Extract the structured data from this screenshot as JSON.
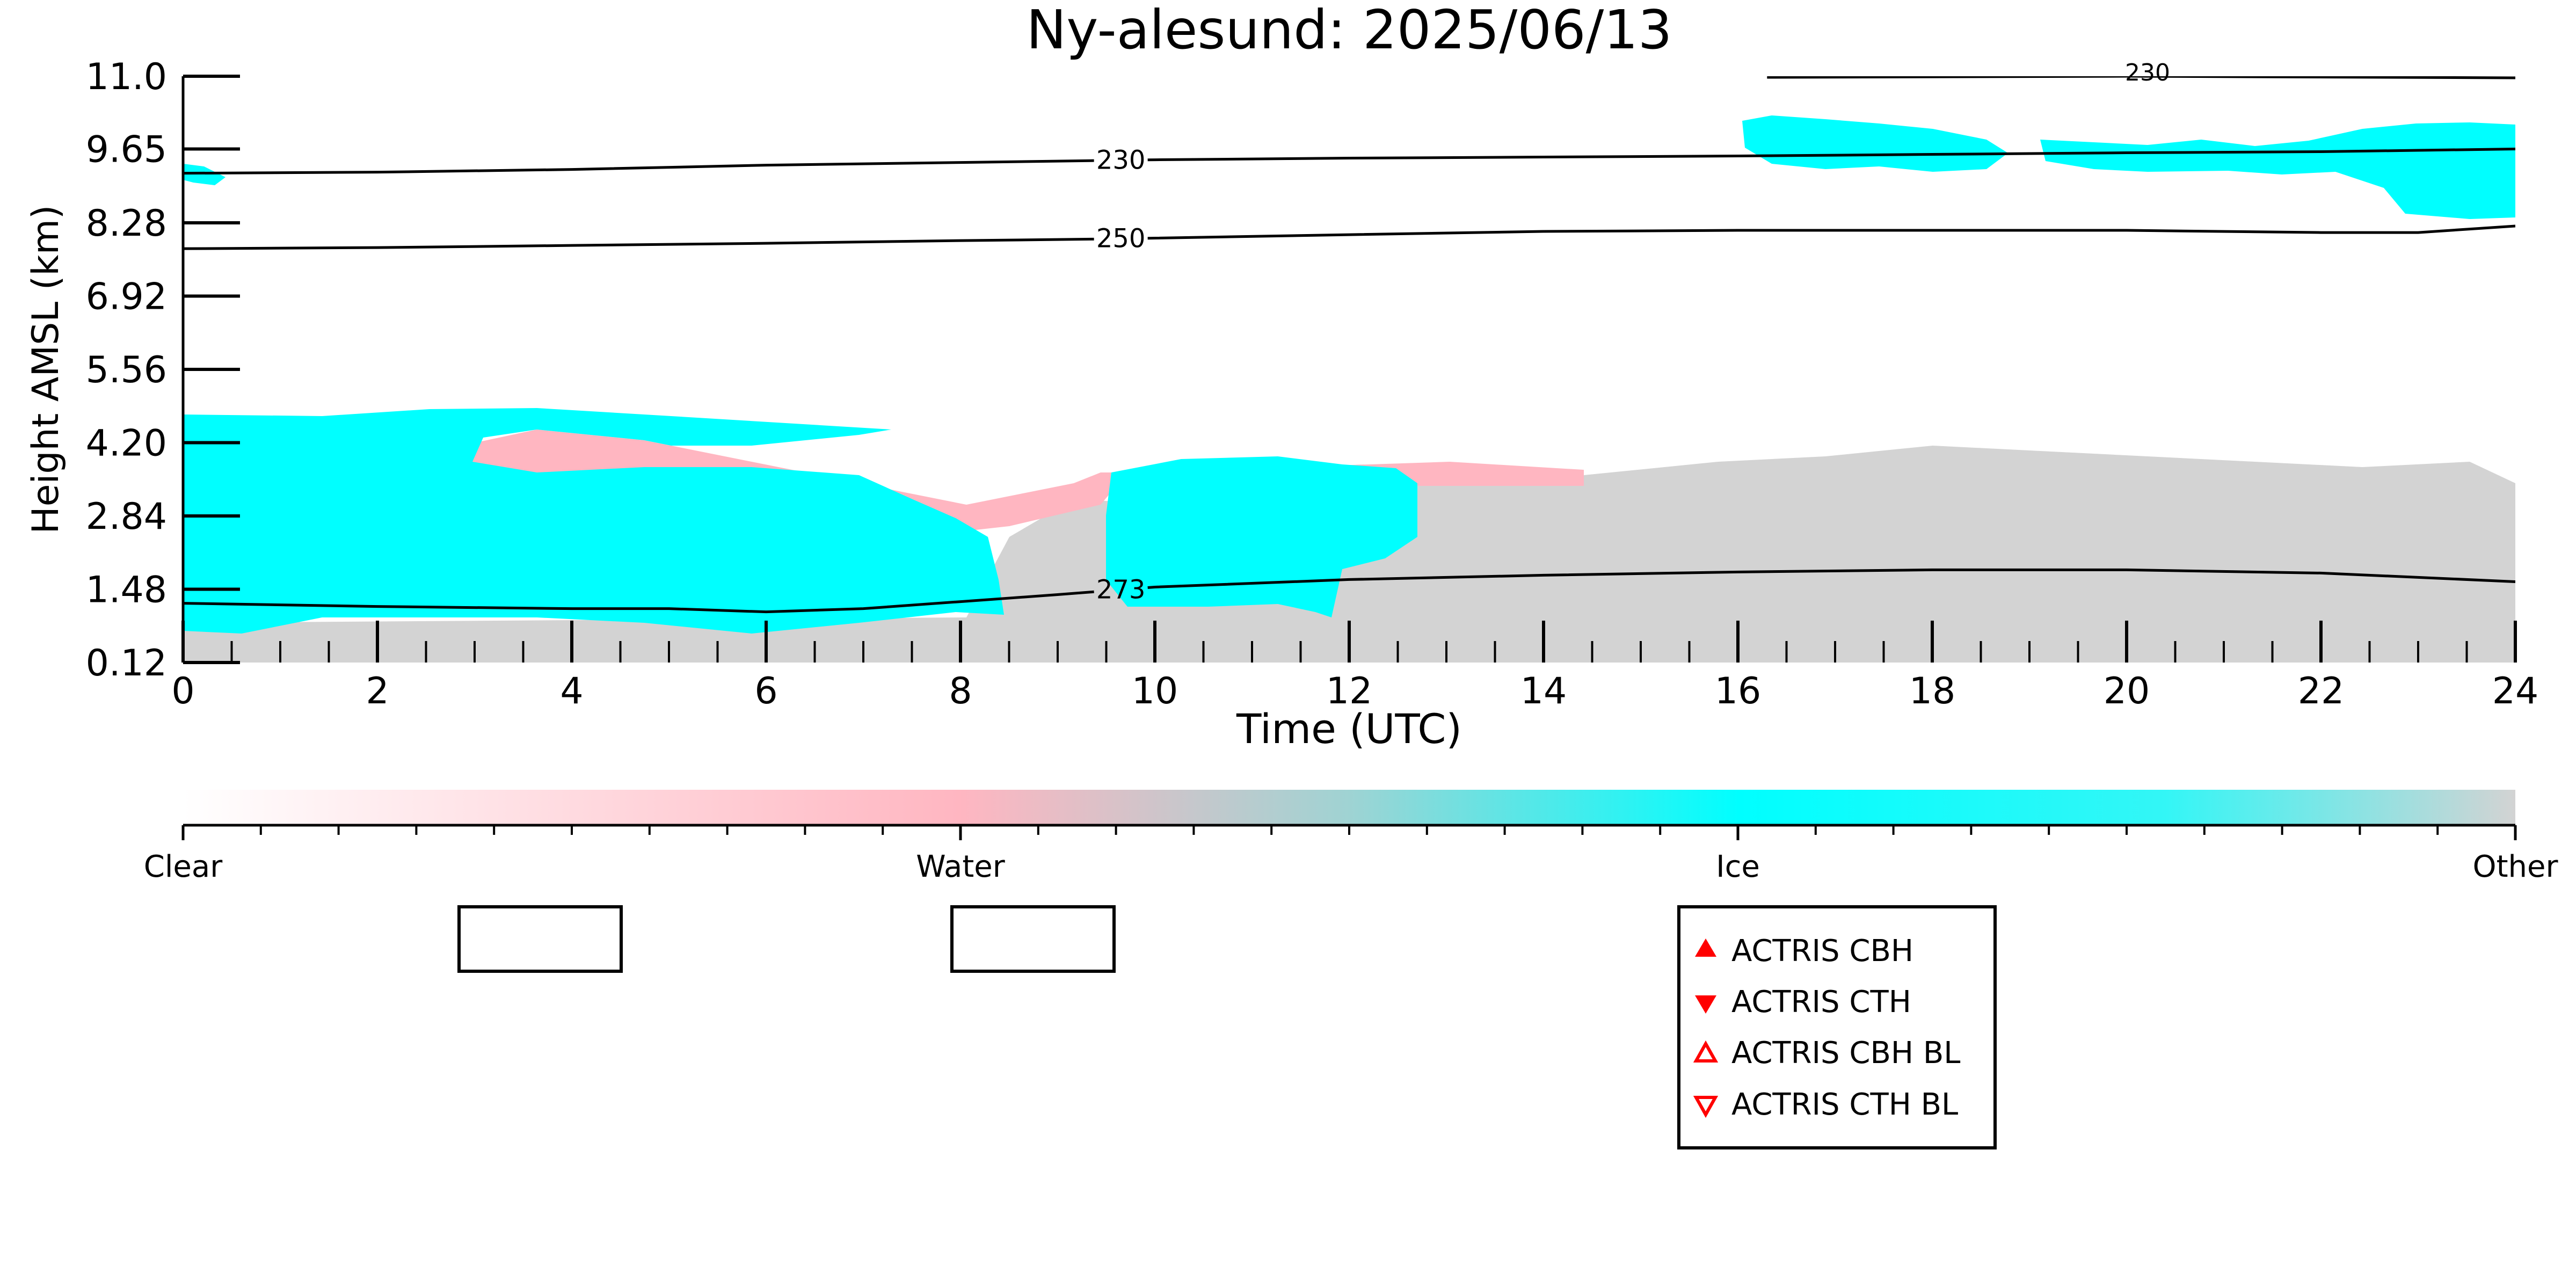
{
  "chart_data": {
    "type": "heatmap",
    "title": "Ny-alesund: 2025/06/13",
    "xlabel": "Time (UTC)",
    "ylabel": "Height AMSL (km)",
    "xlim": [
      0,
      24
    ],
    "ylim": [
      0.12,
      11.0
    ],
    "x_ticks": [
      "0",
      "2",
      "4",
      "6",
      "8",
      "10",
      "12",
      "14",
      "16",
      "18",
      "20",
      "22",
      "24"
    ],
    "y_ticks": [
      "0.12",
      "1.48",
      "2.84",
      "4.20",
      "5.56",
      "6.92",
      "8.28",
      "9.65",
      "11.0"
    ],
    "y_tick_values": [
      0.12,
      1.48,
      2.84,
      4.2,
      5.56,
      6.92,
      8.28,
      9.65,
      11.0
    ],
    "colorbar": {
      "labels": [
        "Clear",
        "Water",
        "Ice",
        "Other"
      ],
      "colors": [
        "#ffffff",
        "#ffb6c1",
        "#00ffff",
        "#d3d3d3"
      ]
    },
    "contours": [
      {
        "label": "230",
        "points": [
          [
            0,
            9.2
          ],
          [
            2,
            9.22
          ],
          [
            4,
            9.27
          ],
          [
            6,
            9.35
          ],
          [
            8,
            9.4
          ],
          [
            10,
            9.45
          ],
          [
            12,
            9.48
          ],
          [
            14,
            9.5
          ],
          [
            16,
            9.52
          ],
          [
            18,
            9.55
          ],
          [
            20,
            9.58
          ],
          [
            22,
            9.6
          ],
          [
            24,
            9.65
          ]
        ]
      },
      {
        "label": "250",
        "points": [
          [
            0,
            7.8
          ],
          [
            2,
            7.82
          ],
          [
            4,
            7.86
          ],
          [
            6,
            7.9
          ],
          [
            8,
            7.95
          ],
          [
            9.5,
            7.98
          ],
          [
            12,
            8.06
          ],
          [
            14,
            8.12
          ],
          [
            16,
            8.14
          ],
          [
            18,
            8.14
          ],
          [
            20,
            8.14
          ],
          [
            22,
            8.1
          ],
          [
            23,
            8.1
          ],
          [
            24,
            8.22
          ]
        ]
      },
      {
        "label": "273",
        "points": [
          [
            0,
            1.22
          ],
          [
            2,
            1.16
          ],
          [
            4,
            1.12
          ],
          [
            5,
            1.12
          ],
          [
            6,
            1.06
          ],
          [
            7,
            1.12
          ],
          [
            8,
            1.25
          ],
          [
            9,
            1.38
          ],
          [
            10,
            1.52
          ],
          [
            12,
            1.66
          ],
          [
            14,
            1.74
          ],
          [
            16,
            1.8
          ],
          [
            18,
            1.84
          ],
          [
            20,
            1.84
          ],
          [
            22,
            1.78
          ],
          [
            24,
            1.62
          ]
        ]
      }
    ],
    "contour_partial_label": "230",
    "legend_boxes": 2,
    "legend": [
      "ACTRIS CBH",
      "ACTRIS CTH",
      "ACTRIS CBH BL",
      "ACTRIS CTH BL"
    ],
    "legend_marker_color": "#ff0000"
  }
}
